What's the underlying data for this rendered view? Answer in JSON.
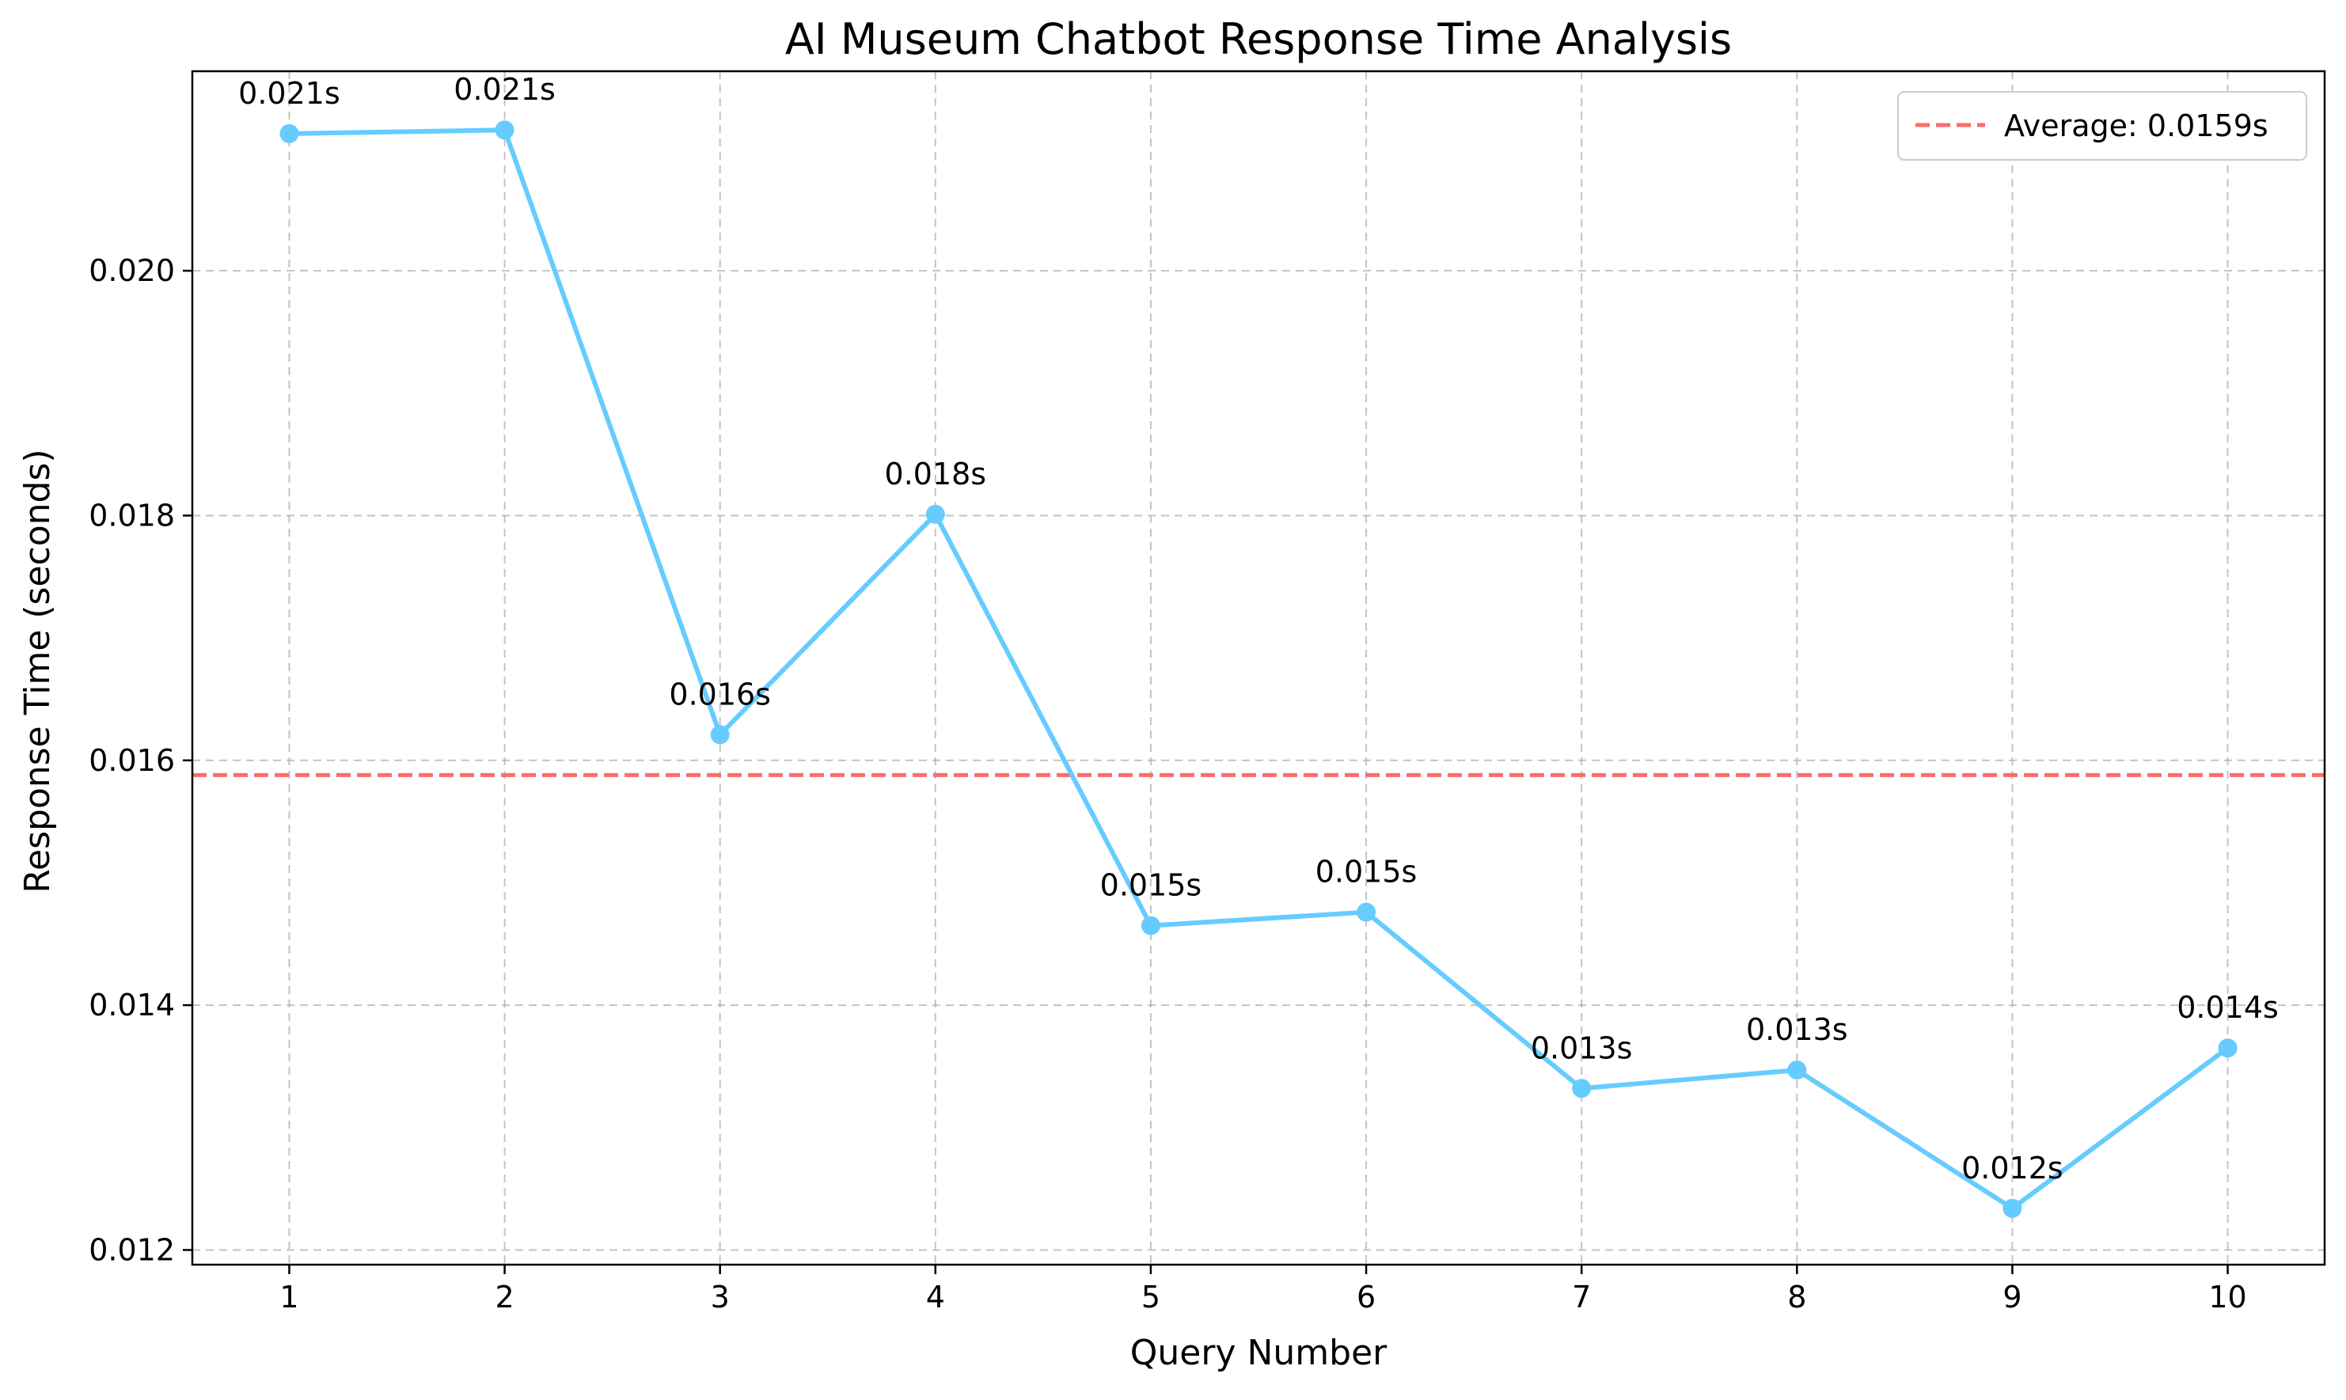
{
  "chart_data": {
    "type": "line",
    "title": "AI Museum Chatbot Response Time Analysis",
    "xlabel": "Query Number",
    "ylabel": "Response Time (seconds)",
    "x": [
      1,
      2,
      3,
      4,
      5,
      6,
      7,
      8,
      9,
      10
    ],
    "xlim": [
      0.55,
      10.45
    ],
    "ylim": [
      0.01188,
      0.02163
    ],
    "yticks": [
      0.012,
      0.014,
      0.016,
      0.018,
      0.02
    ],
    "ytick_labels": [
      "0.012",
      "0.014",
      "0.016",
      "0.018",
      "0.020"
    ],
    "xtick_labels": [
      "1",
      "2",
      "3",
      "4",
      "5",
      "6",
      "7",
      "8",
      "9",
      "10"
    ],
    "grid": true,
    "legend_position": "top-right",
    "series": [
      {
        "values": [
          0.02112,
          0.02115,
          0.01621,
          0.01801,
          0.01465,
          0.01476,
          0.01332,
          0.01347,
          0.01234,
          0.01365
        ],
        "data_labels": [
          "0.021s",
          "0.021s",
          "0.016s",
          "0.018s",
          "0.015s",
          "0.015s",
          "0.013s",
          "0.013s",
          "0.012s",
          "0.014s"
        ],
        "color": "#66ccff"
      }
    ],
    "average_line": {
      "value": 0.01588,
      "label": "Average: 0.0159s",
      "color": "#ff6b6b"
    }
  }
}
